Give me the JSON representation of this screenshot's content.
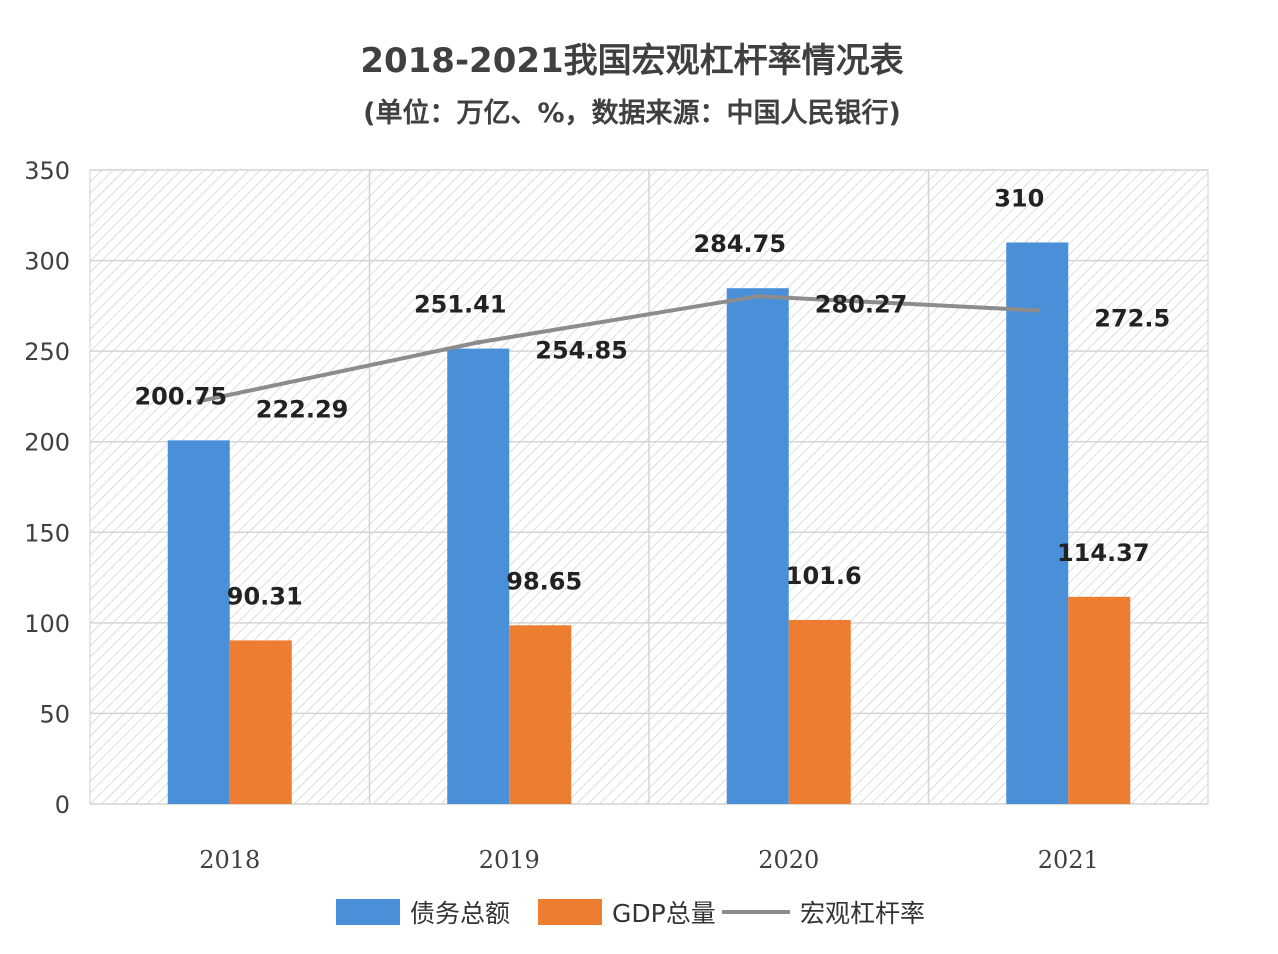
{
  "chart_data": {
    "type": "bar",
    "title": "2018-2021我国宏观杠杆率情况表",
    "subtitle": "(单位：万亿、%，数据来源：中国人民银行)",
    "categories": [
      "2018",
      "2019",
      "2020",
      "2021"
    ],
    "ylim": [
      0,
      350
    ],
    "yticks": [
      0,
      50,
      100,
      150,
      200,
      250,
      300,
      350
    ],
    "grid": true,
    "legend_position": "bottom",
    "series": [
      {
        "name": "债务总额",
        "type": "bar",
        "color": "#4a90d9",
        "values": [
          200.75,
          251.41,
          284.75,
          310
        ],
        "labels": [
          "200.75",
          "251.41",
          "284.75",
          "310"
        ]
      },
      {
        "name": "GDP总量",
        "type": "bar",
        "color": "#ed7d31",
        "values": [
          90.31,
          98.65,
          101.6,
          114.37
        ],
        "labels": [
          "90.31",
          "98.65",
          "101.6",
          "114.37"
        ]
      },
      {
        "name": "宏观杠杆率",
        "type": "line",
        "color": "#8c8c8c",
        "values": [
          222.29,
          254.85,
          280.27,
          272.5
        ],
        "labels": [
          "222.29",
          "254.85",
          "280.27",
          "272.5"
        ]
      }
    ]
  }
}
